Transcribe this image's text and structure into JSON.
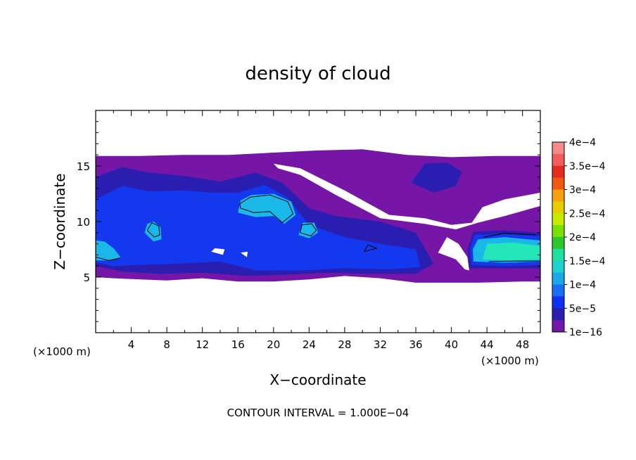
{
  "chart_data": {
    "type": "heatmap",
    "title": "density of cloud",
    "xlabel": "X−coordinate",
    "ylabel": "Z−coordinate",
    "x_unit_left": "(×1000 m)",
    "x_unit_right": "(×1000 m)",
    "xlim": [
      0,
      50
    ],
    "ylim": [
      0,
      20
    ],
    "x_ticks": [
      4,
      8,
      12,
      16,
      20,
      24,
      28,
      32,
      36,
      40,
      44,
      48
    ],
    "y_ticks": [
      5,
      10,
      15
    ],
    "footer": "CONTOUR INTERVAL = 1.000E−04",
    "colorbar": {
      "labels": [
        "4e−4",
        "3.5e−4",
        "3e−4",
        "2.5e−4",
        "2e−4",
        "1.5e−4",
        "1e−4",
        "5e−5",
        "1e−16"
      ],
      "colors": [
        "#f58a8a",
        "#f25c5c",
        "#e52a1e",
        "#f05a10",
        "#f5a010",
        "#e6cc00",
        "#c8ea00",
        "#7ae000",
        "#2ec82e",
        "#1ee0a0",
        "#20d0d0",
        "#1aa8e8",
        "#1870f0",
        "#1030f0",
        "#2a1eb0",
        "#7018a8"
      ]
    },
    "regions": [
      {
        "level": "1e-16",
        "polygon": [
          [
            0,
            5
          ],
          [
            2,
            4.9
          ],
          [
            5,
            4.8
          ],
          [
            8,
            4.7
          ],
          [
            12,
            4.9
          ],
          [
            16,
            4.6
          ],
          [
            20,
            4.6
          ],
          [
            24,
            4.8
          ],
          [
            28,
            5.1
          ],
          [
            32,
            4.9
          ],
          [
            36,
            4.5
          ],
          [
            40,
            4.5
          ],
          [
            43,
            4.5
          ],
          [
            48,
            4.6
          ],
          [
            50,
            4.6
          ],
          [
            50,
            15.9
          ],
          [
            45,
            15.9
          ],
          [
            40,
            15.8
          ],
          [
            35,
            16
          ],
          [
            30,
            16.5
          ],
          [
            25,
            16.4
          ],
          [
            20,
            16.2
          ],
          [
            15,
            16
          ],
          [
            10,
            16
          ],
          [
            5,
            15.9
          ],
          [
            0,
            15.9
          ]
        ]
      },
      {
        "level": "5e-5",
        "polygon": [
          [
            0,
            6
          ],
          [
            3,
            5.5
          ],
          [
            7,
            5.3
          ],
          [
            12,
            5.4
          ],
          [
            17,
            5.1
          ],
          [
            21,
            5.2
          ],
          [
            26,
            5.4
          ],
          [
            31,
            5.3
          ],
          [
            36,
            5.3
          ],
          [
            38,
            6.2
          ],
          [
            36,
            9
          ],
          [
            32,
            10
          ],
          [
            27,
            10.5
          ],
          [
            24,
            11.2
          ],
          [
            21,
            13.5
          ],
          [
            18,
            14.4
          ],
          [
            14,
            13.6
          ],
          [
            10,
            14.1
          ],
          [
            6,
            14.4
          ],
          [
            3,
            14.9
          ],
          [
            0,
            14
          ]
        ]
      },
      {
        "level": "5e-5",
        "polygon": [
          [
            35.5,
            13.5
          ],
          [
            38,
            12.6
          ],
          [
            40.5,
            13.2
          ],
          [
            41.2,
            14.5
          ],
          [
            39.5,
            15.3
          ],
          [
            37,
            15.2
          ]
        ]
      },
      {
        "level": "5e-5",
        "polygon": [
          [
            42,
            5.8
          ],
          [
            46,
            5.8
          ],
          [
            50,
            5.8
          ],
          [
            50,
            9
          ],
          [
            46,
            9.2
          ],
          [
            42.5,
            9.1
          ],
          [
            41.8,
            7.5
          ]
        ]
      },
      {
        "level": "1e-4",
        "polygon": [
          [
            0,
            6.3
          ],
          [
            2,
            6
          ],
          [
            5,
            6.1
          ],
          [
            9,
            6.2
          ],
          [
            14,
            6.4
          ],
          [
            18,
            5.6
          ],
          [
            23,
            5.6
          ],
          [
            28,
            5.8
          ],
          [
            33,
            5.7
          ],
          [
            36.5,
            5.9
          ],
          [
            36,
            7.5
          ],
          [
            32,
            8
          ],
          [
            28,
            8.6
          ],
          [
            24,
            9.7
          ],
          [
            21.5,
            12.2
          ],
          [
            19,
            13.3
          ],
          [
            16,
            12.6
          ],
          [
            13,
            12.6
          ],
          [
            10,
            12.8
          ],
          [
            6,
            12.7
          ],
          [
            3,
            13.2
          ],
          [
            0,
            12
          ]
        ]
      },
      {
        "level": "1e-4",
        "polygon": [
          [
            42.3,
            6.1
          ],
          [
            46,
            6
          ],
          [
            50,
            6.1
          ],
          [
            50,
            8.7
          ],
          [
            46,
            8.9
          ],
          [
            42.6,
            8.8
          ],
          [
            42.1,
            7.5
          ]
        ]
      },
      {
        "level": "1.5e-4",
        "polygon": [
          [
            0,
            6.5
          ],
          [
            1.5,
            6.5
          ],
          [
            2.8,
            6.8
          ],
          [
            2,
            7.6
          ],
          [
            1,
            8.2
          ],
          [
            0,
            8.3
          ]
        ]
      },
      {
        "level": "1.5e-4",
        "polygon": [
          [
            16,
            10.8
          ],
          [
            18,
            10.4
          ],
          [
            20,
            10.5
          ],
          [
            21.2,
            9.8
          ],
          [
            22.5,
            10.6
          ],
          [
            22,
            11.8
          ],
          [
            20,
            12.5
          ],
          [
            17.5,
            12.4
          ],
          [
            16.3,
            11.9
          ]
        ]
      },
      {
        "level": "1.5e-4",
        "polygon": [
          [
            5.5,
            9
          ],
          [
            6.5,
            8.2
          ],
          [
            7.4,
            8.4
          ],
          [
            7.3,
            9.5
          ],
          [
            6.5,
            10
          ],
          [
            5.8,
            9.8
          ]
        ]
      },
      {
        "level": "1.5e-4",
        "polygon": [
          [
            22.8,
            8.8
          ],
          [
            24,
            8.5
          ],
          [
            25,
            9
          ],
          [
            24.6,
            9.9
          ],
          [
            23.3,
            9.9
          ]
        ]
      },
      {
        "level": "1.5e-4",
        "polygon": [
          [
            42.5,
            6.4
          ],
          [
            46,
            6.3
          ],
          [
            50,
            6.4
          ],
          [
            50,
            8.3
          ],
          [
            46,
            8.6
          ],
          [
            43,
            8.4
          ],
          [
            42.4,
            7.5
          ]
        ]
      },
      {
        "level": "2e-4",
        "polygon": [
          [
            43.5,
            6.6
          ],
          [
            47,
            6.5
          ],
          [
            50,
            6.6
          ],
          [
            50,
            7.8
          ],
          [
            47,
            8.1
          ],
          [
            44,
            8
          ]
        ]
      }
    ],
    "contours": [
      [
        [
          0,
          6.8
        ],
        [
          1.5,
          6.5
        ],
        [
          2.7,
          6.7
        ]
      ],
      [
        [
          16.3,
          11.2
        ],
        [
          17.8,
          10.8
        ],
        [
          19.6,
          10.9
        ],
        [
          21,
          9.9
        ],
        [
          22.2,
          10.7
        ],
        [
          21.6,
          11.8
        ],
        [
          19.6,
          12.4
        ],
        [
          17.4,
          12.2
        ],
        [
          16.2,
          11.6
        ],
        [
          16.3,
          11.2
        ]
      ],
      [
        [
          5.8,
          9.2
        ],
        [
          6.6,
          8.6
        ],
        [
          7.2,
          8.8
        ],
        [
          7.1,
          9.6
        ],
        [
          6.3,
          9.9
        ],
        [
          5.8,
          9.2
        ]
      ],
      [
        [
          23,
          9
        ],
        [
          24.2,
          8.7
        ],
        [
          24.8,
          9.2
        ],
        [
          24.3,
          9.8
        ],
        [
          23.2,
          9.7
        ],
        [
          23,
          9
        ]
      ],
      [
        [
          30.2,
          7.3
        ],
        [
          31.6,
          7.6
        ],
        [
          30.6,
          7.9
        ],
        [
          30.2,
          7.3
        ]
      ],
      [
        [
          44.2,
          6.4
        ],
        [
          47,
          6.45
        ],
        [
          50,
          6.45
        ]
      ],
      [
        [
          43.6,
          8.6
        ],
        [
          46,
          8.95
        ],
        [
          49.5,
          8.8
        ]
      ]
    ],
    "grid": false
  }
}
